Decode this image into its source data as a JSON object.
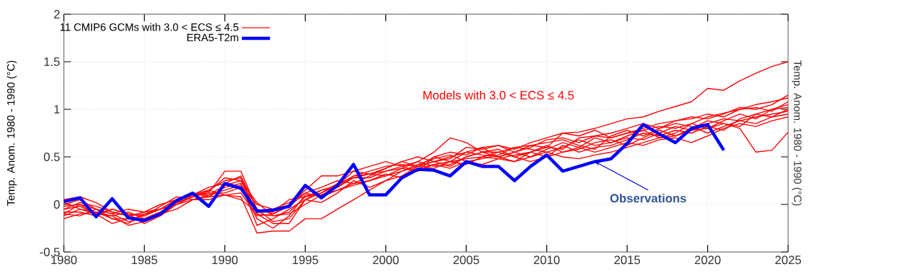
{
  "chart_data": {
    "type": "line",
    "ylabel": "Temp. Anom. 1980 - 1990 (°C)",
    "y2label": "Temp. Anom. 1980 - 1990 (°C)",
    "x": [
      1980,
      1981,
      1982,
      1983,
      1984,
      1985,
      1986,
      1987,
      1988,
      1989,
      1990,
      1991,
      1992,
      1993,
      1994,
      1995,
      1996,
      1997,
      1998,
      1999,
      2000,
      2001,
      2002,
      2003,
      2004,
      2005,
      2006,
      2007,
      2008,
      2009,
      2010,
      2011,
      2012,
      2013,
      2014,
      2015,
      2016,
      2017,
      2018,
      2019,
      2020,
      2021,
      2022,
      2023,
      2024,
      2025
    ],
    "xlim": [
      1980,
      2025
    ],
    "xticks": [
      1980,
      1985,
      1990,
      1995,
      2000,
      2005,
      2010,
      2015,
      2020,
      2025
    ],
    "ylim": [
      -0.5,
      2
    ],
    "yticks": [
      -0.5,
      0,
      0.5,
      1,
      1.5,
      2
    ],
    "grid": true,
    "legend": "top left",
    "marker": "none",
    "line_style": "solid",
    "annotations": [
      "Models with 3.0 < ECS ≤ 4.5",
      {
        "text": "Observations",
        "x": 2013,
        "y": 0.45
      }
    ],
    "series": [
      {
        "name": "11 CMIP6 GCMs with 3.0 < ECS ≤ 4.5",
        "color": "#ff0000",
        "values": [
          -0.05,
          -0.02,
          -0.1,
          -0.05,
          -0.1,
          -0.12,
          -0.05,
          0.05,
          0.1,
          0.12,
          0.35,
          0.35,
          -0.05,
          -0.1,
          0.0,
          0.15,
          0.3,
          0.3,
          0.35,
          0.32,
          0.35,
          0.4,
          0.45,
          0.55,
          0.7,
          0.65,
          0.55,
          0.55,
          0.5,
          0.55,
          0.6,
          0.75,
          0.76,
          0.8,
          0.85,
          0.9,
          0.92,
          0.98,
          1.03,
          1.08,
          1.22,
          1.2,
          1.3,
          1.38,
          1.45,
          1.5
        ]
      },
      {
        "color": "#ff0000",
        "values": [
          -0.12,
          -0.05,
          -0.1,
          -0.2,
          -0.15,
          -0.15,
          -0.1,
          0.0,
          0.05,
          0.05,
          0.1,
          0.08,
          -0.3,
          -0.28,
          -0.28,
          -0.15,
          -0.15,
          -0.05,
          0.05,
          0.15,
          0.25,
          0.35,
          0.4,
          0.45,
          0.4,
          0.5,
          0.55,
          0.5,
          0.45,
          0.5,
          0.55,
          0.5,
          0.48,
          0.52,
          0.55,
          0.6,
          0.65,
          0.7,
          0.72,
          0.78,
          0.8,
          0.85,
          0.8,
          0.55,
          0.57,
          0.76
        ]
      },
      {
        "color": "#ff0000",
        "values": [
          -0.1,
          0.0,
          -0.05,
          -0.15,
          -0.2,
          -0.1,
          -0.05,
          0.05,
          0.1,
          0.15,
          0.25,
          0.28,
          -0.1,
          -0.2,
          -0.2,
          0.05,
          0.15,
          0.2,
          0.3,
          0.35,
          0.4,
          0.42,
          0.4,
          0.45,
          0.5,
          0.55,
          0.6,
          0.5,
          0.55,
          0.62,
          0.6,
          0.58,
          0.7,
          0.72,
          0.7,
          0.75,
          0.8,
          0.85,
          0.88,
          0.9,
          0.95,
          0.92,
          1.0,
          1.05,
          1.08,
          1.12
        ]
      },
      {
        "color": "#ff0000",
        "values": [
          0.0,
          0.05,
          -0.05,
          -0.1,
          -0.18,
          -0.15,
          -0.08,
          0.02,
          0.12,
          0.1,
          0.15,
          0.2,
          0.0,
          -0.05,
          0.02,
          0.12,
          0.18,
          0.25,
          0.22,
          0.3,
          0.38,
          0.45,
          0.5,
          0.45,
          0.48,
          0.6,
          0.58,
          0.62,
          0.55,
          0.5,
          0.58,
          0.65,
          0.6,
          0.7,
          0.65,
          0.72,
          0.78,
          0.7,
          0.75,
          0.85,
          0.8,
          0.88,
          0.95,
          0.9,
          1.0,
          1.05
        ]
      },
      {
        "color": "#ff0000",
        "values": [
          -0.08,
          -0.08,
          -0.12,
          -0.05,
          -0.1,
          -0.2,
          -0.12,
          0.0,
          0.08,
          0.12,
          0.12,
          0.18,
          -0.15,
          -0.25,
          -0.12,
          0.1,
          0.1,
          0.15,
          0.2,
          0.25,
          0.3,
          0.38,
          0.35,
          0.42,
          0.45,
          0.48,
          0.5,
          0.55,
          0.6,
          0.58,
          0.55,
          0.6,
          0.68,
          0.62,
          0.65,
          0.7,
          0.68,
          0.75,
          0.82,
          0.78,
          0.85,
          0.9,
          0.88,
          0.92,
          0.95,
          0.98
        ]
      },
      {
        "color": "#ff0000",
        "values": [
          0.05,
          0.08,
          0.02,
          -0.08,
          -0.12,
          -0.08,
          0.0,
          0.05,
          0.1,
          0.15,
          0.1,
          0.05,
          -0.08,
          -0.08,
          0.05,
          0.08,
          0.12,
          0.2,
          0.35,
          0.4,
          0.45,
          0.4,
          0.35,
          0.5,
          0.55,
          0.52,
          0.6,
          0.62,
          0.58,
          0.65,
          0.7,
          0.75,
          0.72,
          0.78,
          0.7,
          0.75,
          0.78,
          0.82,
          0.8,
          0.85,
          0.92,
          0.96,
          1.0,
          1.02,
          0.98,
          1.08
        ]
      },
      {
        "color": "#ff0000",
        "values": [
          -0.15,
          -0.1,
          -0.08,
          -0.12,
          -0.22,
          -0.18,
          -0.1,
          -0.05,
          0.05,
          0.08,
          0.18,
          0.22,
          -0.22,
          -0.15,
          -0.05,
          0.05,
          0.02,
          0.12,
          0.25,
          0.18,
          0.25,
          0.3,
          0.4,
          0.38,
          0.45,
          0.42,
          0.5,
          0.48,
          0.52,
          0.55,
          0.5,
          0.55,
          0.58,
          0.65,
          0.68,
          0.62,
          0.7,
          0.78,
          0.72,
          0.8,
          0.88,
          0.85,
          0.82,
          0.95,
          1.0,
          1.02
        ]
      },
      {
        "color": "#ff0000",
        "values": [
          0.02,
          -0.05,
          -0.08,
          -0.15,
          -0.15,
          -0.12,
          -0.02,
          0.08,
          0.05,
          0.1,
          0.2,
          0.25,
          0.02,
          -0.12,
          -0.1,
          0.0,
          0.1,
          0.18,
          0.28,
          0.28,
          0.35,
          0.38,
          0.45,
          0.4,
          0.42,
          0.5,
          0.55,
          0.58,
          0.5,
          0.45,
          0.5,
          0.62,
          0.55,
          0.6,
          0.62,
          0.68,
          0.75,
          0.72,
          0.78,
          0.75,
          0.82,
          0.78,
          0.9,
          0.95,
          0.92,
          1.0
        ]
      },
      {
        "color": "#ff0000",
        "values": [
          -0.05,
          0.02,
          -0.02,
          -0.08,
          -0.12,
          -0.1,
          -0.05,
          0.0,
          0.1,
          0.18,
          0.22,
          0.3,
          -0.05,
          -0.18,
          -0.15,
          0.05,
          0.12,
          0.22,
          0.28,
          0.32,
          0.3,
          0.35,
          0.42,
          0.48,
          0.52,
          0.45,
          0.48,
          0.52,
          0.6,
          0.62,
          0.65,
          0.68,
          0.62,
          0.58,
          0.72,
          0.78,
          0.72,
          0.8,
          0.85,
          0.82,
          0.75,
          0.82,
          0.88,
          0.85,
          0.92,
          0.95
        ]
      },
      {
        "color": "#ff0000",
        "values": [
          -0.1,
          -0.12,
          -0.05,
          -0.1,
          -0.05,
          -0.08,
          -0.05,
          0.05,
          0.12,
          0.08,
          0.1,
          0.12,
          -0.12,
          -0.1,
          -0.02,
          0.12,
          0.08,
          0.15,
          0.22,
          0.25,
          0.32,
          0.28,
          0.38,
          0.42,
          0.38,
          0.45,
          0.42,
          0.48,
          0.45,
          0.55,
          0.62,
          0.55,
          0.6,
          0.55,
          0.6,
          0.65,
          0.62,
          0.68,
          0.7,
          0.65,
          0.72,
          0.8,
          0.85,
          0.82,
          0.88,
          0.92
        ]
      },
      {
        "color": "#ff0000",
        "values": [
          -0.02,
          0.0,
          -0.1,
          -0.12,
          -0.08,
          -0.15,
          -0.08,
          0.02,
          0.08,
          0.14,
          0.28,
          0.25,
          -0.1,
          -0.12,
          -0.08,
          0.08,
          0.15,
          0.18,
          0.3,
          0.32,
          0.38,
          0.45,
          0.4,
          0.5,
          0.45,
          0.55,
          0.52,
          0.5,
          0.55,
          0.6,
          0.68,
          0.7,
          0.65,
          0.72,
          0.75,
          0.8,
          0.85,
          0.8,
          0.88,
          0.92,
          0.9,
          0.95,
          1.02,
          1.0,
          1.05,
          1.15
        ]
      },
      {
        "name": "ERA5-T2m",
        "color": "#0000ff",
        "values": [
          0.03,
          0.07,
          -0.13,
          0.06,
          -0.14,
          -0.17,
          -0.1,
          0.04,
          0.12,
          -0.02,
          0.22,
          0.17,
          -0.07,
          -0.06,
          -0.02,
          0.2,
          0.07,
          0.2,
          0.42,
          0.1,
          0.1,
          0.28,
          0.37,
          0.36,
          0.3,
          0.45,
          0.4,
          0.4,
          0.25,
          0.4,
          0.52,
          0.35,
          0.4,
          0.45,
          0.48,
          0.64,
          0.84,
          0.74,
          0.65,
          0.8,
          0.84,
          0.57,
          null,
          null,
          null,
          null
        ]
      }
    ]
  }
}
